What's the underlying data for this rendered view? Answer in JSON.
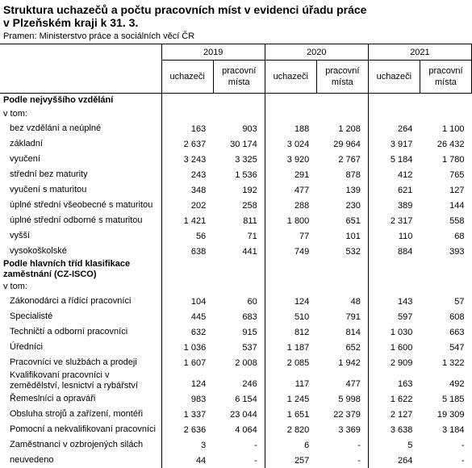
{
  "header": {
    "title_lines": [
      "Struktura uchazečů a počtu pracovních míst v evidenci úřadu práce",
      "v Plzeňském kraji k 31. 3."
    ],
    "source": "Pramen: Ministerstvo práce a sociálních věcí ČR"
  },
  "table": {
    "years": [
      {
        "year": "2019",
        "columns": [
          "uchazeči",
          "pracovní místa"
        ]
      },
      {
        "year": "2020",
        "columns": [
          "uchazeči",
          "pracovní místa"
        ]
      },
      {
        "year": "2021",
        "columns": [
          "uchazeči",
          "pracovní místa"
        ]
      }
    ],
    "sections": [
      {
        "title": "Podle nejvyššího vzdělání",
        "subtitle": "v tom:",
        "rows": [
          {
            "label": "bez vzdělání a neúplné",
            "values": [
              "163",
              "903",
              "188",
              "1 208",
              "264",
              "1 100"
            ]
          },
          {
            "label": "základní",
            "values": [
              "2 637",
              "30 174",
              "3 024",
              "29 964",
              "3 917",
              "26 432"
            ]
          },
          {
            "label": "vyučení",
            "values": [
              "3 243",
              "3 325",
              "3 920",
              "2 767",
              "5 184",
              "1 780"
            ]
          },
          {
            "label": "střední bez maturity",
            "values": [
              "243",
              "1 536",
              "291",
              "878",
              "412",
              "765"
            ]
          },
          {
            "label": "vyučení s maturitou",
            "values": [
              "348",
              "192",
              "477",
              "139",
              "621",
              "127"
            ]
          },
          {
            "label": "úplné střední všeobecné s maturitou",
            "values": [
              "202",
              "258",
              "288",
              "230",
              "389",
              "144"
            ]
          },
          {
            "label": "úplné střední odborné s maturitou",
            "values": [
              "1 421",
              "811",
              "1 800",
              "651",
              "2 317",
              "558"
            ]
          },
          {
            "label": "vyšší",
            "values": [
              "56",
              "71",
              "77",
              "101",
              "110",
              "68"
            ]
          },
          {
            "label": "vysokoškolské",
            "values": [
              "638",
              "441",
              "749",
              "532",
              "884",
              "393"
            ]
          }
        ]
      },
      {
        "title": "Podle hlavních tříd klasifikace zaměstnání (CZ-ISCO)",
        "subtitle": "v tom:",
        "rows": [
          {
            "label": "Zákonodárci a řídící pracovníci",
            "values": [
              "104",
              "60",
              "124",
              "48",
              "143",
              "57"
            ]
          },
          {
            "label": "Specialisté",
            "values": [
              "445",
              "683",
              "510",
              "791",
              "597",
              "608"
            ]
          },
          {
            "label": "Techničtí a odborní pracovníci",
            "values": [
              "632",
              "915",
              "812",
              "814",
              "1 030",
              "663"
            ]
          },
          {
            "label": "Úředníci",
            "values": [
              "1 036",
              "537",
              "1 187",
              "652",
              "1 600",
              "547"
            ]
          },
          {
            "label": "Pracovníci ve službách a prodeji",
            "values": [
              "1 607",
              "2 008",
              "2 085",
              "1 942",
              "2 909",
              "1 322"
            ]
          },
          {
            "label": "Kvalifikovaní pracovníci v zemědělství, lesnictví a rybářství",
            "values": [
              "124",
              "246",
              "117",
              "477",
              "163",
              "492"
            ]
          },
          {
            "label": "Řemeslníci a opraváři",
            "values": [
              "983",
              "6 154",
              "1 245",
              "5 998",
              "1 622",
              "5 185"
            ]
          },
          {
            "label": "Obsluha strojů a zařízení, montéři",
            "values": [
              "1 337",
              "23 044",
              "1 651",
              "22 379",
              "2 127",
              "19 309"
            ]
          },
          {
            "label": "Pomocní a nekvalifikovaní pracovníci",
            "values": [
              "2 636",
              "4 064",
              "2 820",
              "3 369",
              "3 638",
              "3 184"
            ]
          },
          {
            "label": "Zaměstnanci v ozbrojených silách",
            "values": [
              "3",
              "-",
              "6",
              "-",
              "5",
              "-"
            ]
          },
          {
            "label": "neuvedeno",
            "values": [
              "44",
              "-",
              "257",
              "-",
              "264",
              "-"
            ]
          }
        ]
      }
    ]
  }
}
